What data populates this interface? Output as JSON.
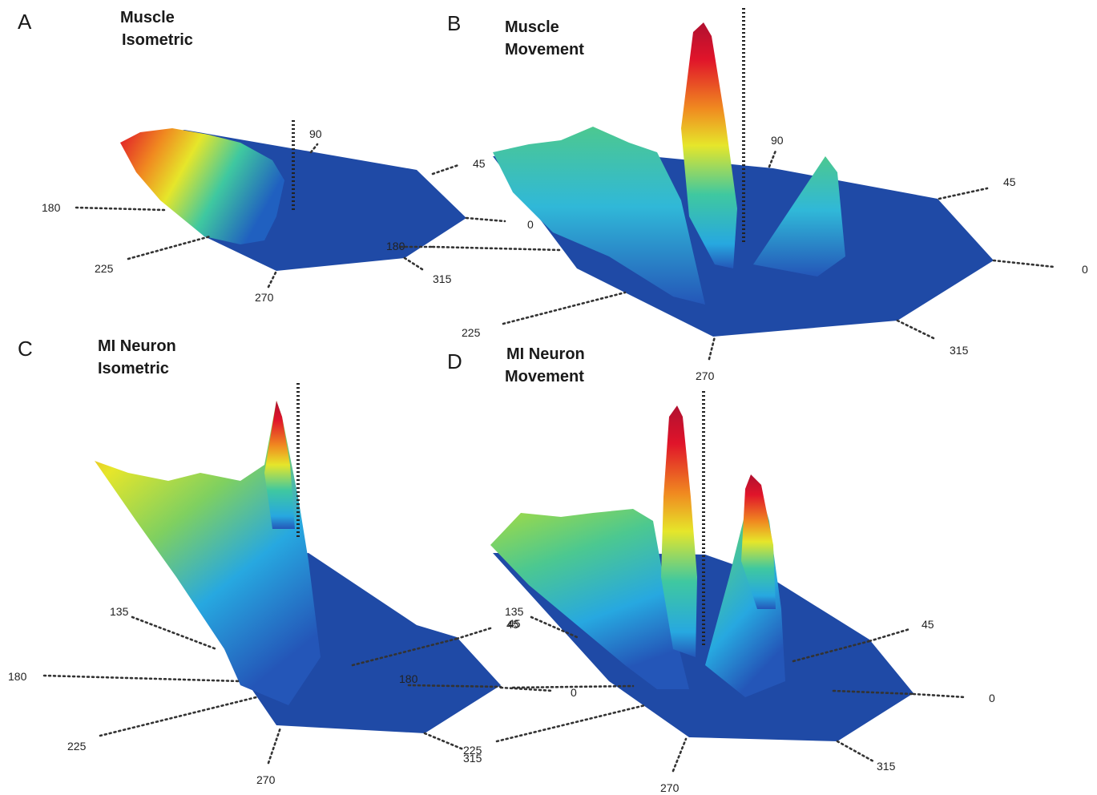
{
  "chart_data": [
    {
      "type": "surface3d",
      "panel": "A",
      "title_lines": [
        "Muscle",
        "Isometric"
      ],
      "direction_labels": [
        "90",
        "45",
        "180",
        "225",
        "270",
        "315",
        "0",
        "180"
      ],
      "surface_note": "",
      "colormap": [
        "#1f4aa6",
        "#27a8e0",
        "#3fc8a0",
        "#e6e62a",
        "#f08a20",
        "#e0142a"
      ]
    },
    {
      "type": "surface3d",
      "panel": "B",
      "title_lines": [
        "Muscle",
        "Movement"
      ],
      "direction_labels": [
        "90",
        "45",
        "0",
        "225",
        "270",
        "315"
      ],
      "colormap": [
        "#1f4aa6",
        "#27a8e0",
        "#3fc8a0",
        "#e6e62a",
        "#f08a20",
        "#e0142a"
      ]
    },
    {
      "type": "surface3d",
      "panel": "C",
      "title_lines": [
        "MI Neuron",
        "Isometric"
      ],
      "direction_labels": [
        "135",
        "180",
        "225",
        "270",
        "315",
        "45",
        "180",
        "0",
        "225"
      ],
      "colormap": [
        "#1f4aa6",
        "#27a8e0",
        "#3fc8a0",
        "#e6e62a",
        "#f08a20",
        "#e0142a"
      ]
    },
    {
      "type": "surface3d",
      "panel": "D",
      "title_lines": [
        "MI Neuron",
        "Movement"
      ],
      "direction_labels": [
        "135",
        "45",
        "45",
        "0",
        "315",
        "270"
      ],
      "colormap": [
        "#1f4aa6",
        "#27a8e0",
        "#3fc8a0",
        "#e6e62a",
        "#f08a20",
        "#e0142a"
      ]
    }
  ]
}
